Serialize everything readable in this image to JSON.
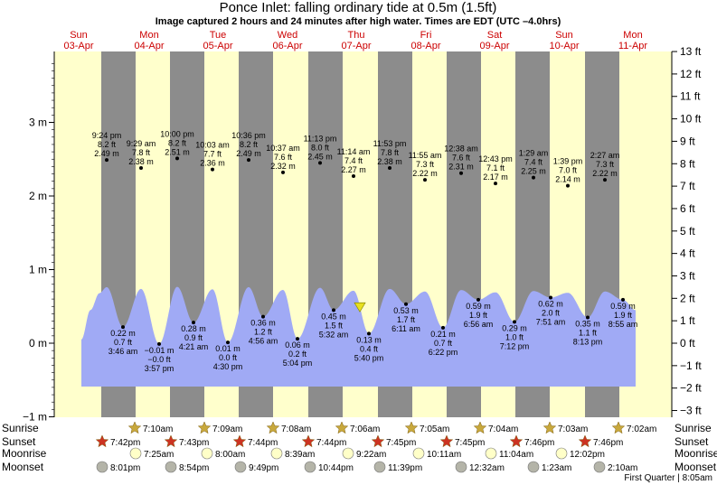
{
  "header": {
    "title": "Ponce Inlet: falling  ordinary tide at 0.5m (1.5ft)",
    "subtitle": "Image captured 2 hours and 24 minutes after high water. Times are EDT (UTC –4.0hrs)"
  },
  "days": [
    {
      "name": "Sun",
      "date": "03-Apr"
    },
    {
      "name": "Mon",
      "date": "04-Apr"
    },
    {
      "name": "Tue",
      "date": "05-Apr"
    },
    {
      "name": "Wed",
      "date": "06-Apr"
    },
    {
      "name": "Thu",
      "date": "07-Apr"
    },
    {
      "name": "Fri",
      "date": "08-Apr"
    },
    {
      "name": "Sat",
      "date": "09-Apr"
    },
    {
      "name": "Sun",
      "date": "10-Apr"
    },
    {
      "name": "Mon",
      "date": "11-Apr"
    }
  ],
  "row_labels": {
    "sunrise": "Sunrise",
    "sunset": "Sunset",
    "moonrise": "Moonrise",
    "moonset": "Moonset"
  },
  "sunrise": [
    "7:10am",
    "7:09am",
    "7:08am",
    "7:06am",
    "7:05am",
    "7:04am",
    "7:03am",
    "7:02am"
  ],
  "sunset": [
    "7:42pm",
    "7:43pm",
    "7:44pm",
    "7:44pm",
    "7:45pm",
    "7:45pm",
    "7:46pm",
    "7:46pm"
  ],
  "moonrise": [
    "7:25am",
    "8:00am",
    "8:39am",
    "9:22am",
    "10:11am",
    "11:04am",
    "12:02pm"
  ],
  "moonset": [
    "8:01pm",
    "8:54pm",
    "9:49pm",
    "10:44pm",
    "11:39pm",
    "12:32am",
    "1:23am",
    "2:10am"
  ],
  "moon_phase": "First Quarter | 8:05am",
  "colors": {
    "night": "#8c8c8c",
    "day": "#ffffcc",
    "water": "#a0aaf5",
    "day_name": "#cc0000",
    "sun_star": "#c8a83c",
    "sunset_star": "#cc3322",
    "moonrise": "#ffffc8",
    "moonset": "#b4b4a8",
    "marker": "#e8e020"
  },
  "chart_data": {
    "type": "area",
    "title": "Ponce Inlet: falling  ordinary tide at 0.5m (1.5ft)",
    "y_left_unit": "m",
    "y_left_ticks": [
      "−1 m",
      "0 m",
      "1 m",
      "2 m",
      "3 m"
    ],
    "y_left_range": [
      -1,
      3.9
    ],
    "y_right_ticks": [
      "−3 ft",
      "−2 ft",
      "−1 ft",
      "0 ft",
      "1 ft",
      "2 ft",
      "3 ft",
      "4 ft",
      "5 ft",
      "6 ft",
      "7 ft",
      "8 ft",
      "9 ft",
      "10 ft",
      "11 ft",
      "12 ft",
      "13 ft"
    ],
    "current_level_m": 0.5,
    "high_tides": [
      {
        "time": "9:24 pm",
        "ft": "8.2 ft",
        "m": "2.49 m",
        "value": 2.49
      },
      {
        "time": "9:29 am",
        "ft": "7.8 ft",
        "m": "2.38 m",
        "value": 2.38
      },
      {
        "time": "10:00 pm",
        "ft": "8.2 ft",
        "m": "2.51 m",
        "value": 2.51
      },
      {
        "time": "10:03 am",
        "ft": "7.7 ft",
        "m": "2.36 m",
        "value": 2.36
      },
      {
        "time": "10:36 pm",
        "ft": "8.2 ft",
        "m": "2.49 m",
        "value": 2.49
      },
      {
        "time": "10:37 am",
        "ft": "7.6 ft",
        "m": "2.32 m",
        "value": 2.32
      },
      {
        "time": "11:13 pm",
        "ft": "8.0 ft",
        "m": "2.45 m",
        "value": 2.45
      },
      {
        "time": "11:14 am",
        "ft": "7.4 ft",
        "m": "2.27 m",
        "value": 2.27
      },
      {
        "time": "11:53 pm",
        "ft": "7.8 ft",
        "m": "2.38 m",
        "value": 2.38
      },
      {
        "time": "11:55 am",
        "ft": "7.3 ft",
        "m": "2.22 m",
        "value": 2.22
      },
      {
        "time": "12:38 am",
        "ft": "7.6 ft",
        "m": "2.31 m",
        "value": 2.31
      },
      {
        "time": "12:43 pm",
        "ft": "7.1 ft",
        "m": "2.17 m",
        "value": 2.17
      },
      {
        "time": "1:29 am",
        "ft": "7.4 ft",
        "m": "2.25 m",
        "value": 2.25
      },
      {
        "time": "1:39 pm",
        "ft": "7.0 ft",
        "m": "2.14 m",
        "value": 2.14
      },
      {
        "time": "2:27 am",
        "ft": "7.3 ft",
        "m": "2.22 m",
        "value": 2.22
      }
    ],
    "low_tides": [
      {
        "m": "0.22 m",
        "ft": "0.7 ft",
        "time": "3:46 am",
        "value": 0.22
      },
      {
        "m": "−0.01 m",
        "ft": "−0.0 ft",
        "time": "3:57 pm",
        "value": -0.01
      },
      {
        "m": "0.28 m",
        "ft": "0.9 ft",
        "time": "4:21 am",
        "value": 0.28
      },
      {
        "m": "0.01 m",
        "ft": "0.0 ft",
        "time": "4:30 pm",
        "value": 0.01
      },
      {
        "m": "0.36 m",
        "ft": "1.2 ft",
        "time": "4:56 am",
        "value": 0.36
      },
      {
        "m": "0.06 m",
        "ft": "0.2 ft",
        "time": "5:04 pm",
        "value": 0.06
      },
      {
        "m": "0.45 m",
        "ft": "1.5 ft",
        "time": "5:32 am",
        "value": 0.45
      },
      {
        "m": "0.13 m",
        "ft": "0.4 ft",
        "time": "5:40 pm",
        "value": 0.13
      },
      {
        "m": "0.53 m",
        "ft": "1.7 ft",
        "time": "6:11 am",
        "value": 0.53
      },
      {
        "m": "0.21 m",
        "ft": "0.7 ft",
        "time": "6:22 pm",
        "value": 0.21
      },
      {
        "m": "0.59 m",
        "ft": "1.9 ft",
        "time": "6:56 am",
        "value": 0.59
      },
      {
        "m": "0.29 m",
        "ft": "1.0 ft",
        "time": "7:12 pm",
        "value": 0.29
      },
      {
        "m": "0.62 m",
        "ft": "2.0 ft",
        "time": "7:51 am",
        "value": 0.62
      },
      {
        "m": "0.35 m",
        "ft": "1.1 ft",
        "time": "8:13 pm",
        "value": 0.35
      },
      {
        "m": "0.59 m",
        "ft": "1.9 ft",
        "time": "8:55 am",
        "value": 0.59
      }
    ]
  }
}
